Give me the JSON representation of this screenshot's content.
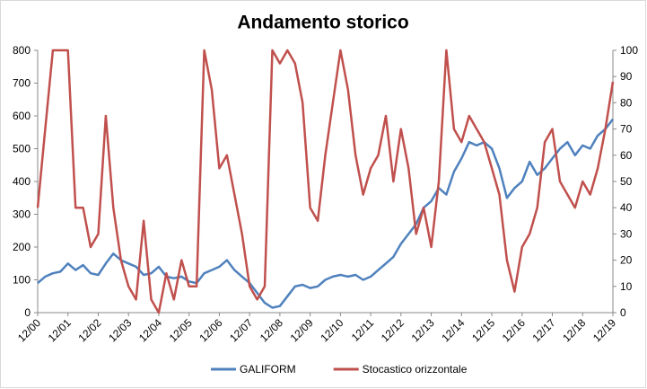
{
  "chart_data": {
    "type": "line",
    "title": "Andamento storico",
    "categories": [
      "12/00",
      null,
      null,
      null,
      "12/01",
      null,
      null,
      null,
      "12/02",
      null,
      null,
      null,
      "12/03",
      null,
      null,
      null,
      "12/04",
      null,
      null,
      null,
      "12/05",
      null,
      null,
      null,
      "12/06",
      null,
      null,
      null,
      "12/07",
      null,
      null,
      null,
      "12/08",
      null,
      null,
      null,
      "12/09",
      null,
      null,
      null,
      "12/10",
      null,
      null,
      null,
      "12/11",
      null,
      null,
      null,
      "12/12",
      null,
      null,
      null,
      "12/13",
      null,
      null,
      null,
      "12/14",
      null,
      null,
      null,
      "12/15",
      null,
      null,
      null,
      "12/16",
      null,
      null,
      null,
      "12/17",
      null,
      null,
      null,
      "12/18",
      null,
      null,
      null,
      "12/19"
    ],
    "series": [
      {
        "name": "GALIFORM",
        "color": "#4f81bd",
        "values": [
          90,
          110,
          120,
          125,
          150,
          130,
          145,
          120,
          115,
          150,
          180,
          160,
          150,
          140,
          115,
          120,
          140,
          110,
          105,
          110,
          95,
          90,
          120,
          130,
          140,
          160,
          130,
          110,
          90,
          60,
          30,
          15,
          20,
          50,
          80,
          85,
          75,
          80,
          100,
          110,
          115,
          110,
          115,
          100,
          110,
          130,
          150,
          170,
          210,
          240,
          270,
          320,
          340,
          380,
          360,
          430,
          470,
          520,
          510,
          520,
          500,
          440,
          350,
          380,
          400,
          460,
          420,
          440,
          470,
          500,
          520,
          480,
          510,
          500,
          540,
          560,
          590
        ]
      },
      {
        "name": "Stocastico orizzontale",
        "color": "#c0504d",
        "axis": "y2",
        "values": [
          40,
          70,
          100,
          100,
          100,
          40,
          40,
          25,
          30,
          75,
          40,
          20,
          10,
          5,
          35,
          5,
          0,
          15,
          5,
          20,
          10,
          10,
          100,
          85,
          55,
          60,
          45,
          30,
          10,
          5,
          10,
          100,
          95,
          100,
          95,
          80,
          40,
          35,
          60,
          80,
          100,
          85,
          60,
          45,
          55,
          60,
          75,
          50,
          70,
          55,
          30,
          40,
          25,
          50,
          100,
          70,
          65,
          75,
          70,
          65,
          55,
          45,
          20,
          8,
          25,
          30,
          40,
          65,
          70,
          50,
          45,
          40,
          50,
          45,
          55,
          70,
          88
        ]
      }
    ],
    "ylim": [
      0,
      800
    ],
    "yticks": [
      0,
      100,
      200,
      300,
      400,
      500,
      600,
      700,
      800
    ],
    "y2lim": [
      0,
      100
    ],
    "y2ticks": [
      0,
      10,
      20,
      30,
      40,
      50,
      60,
      70,
      80,
      90,
      100
    ]
  }
}
